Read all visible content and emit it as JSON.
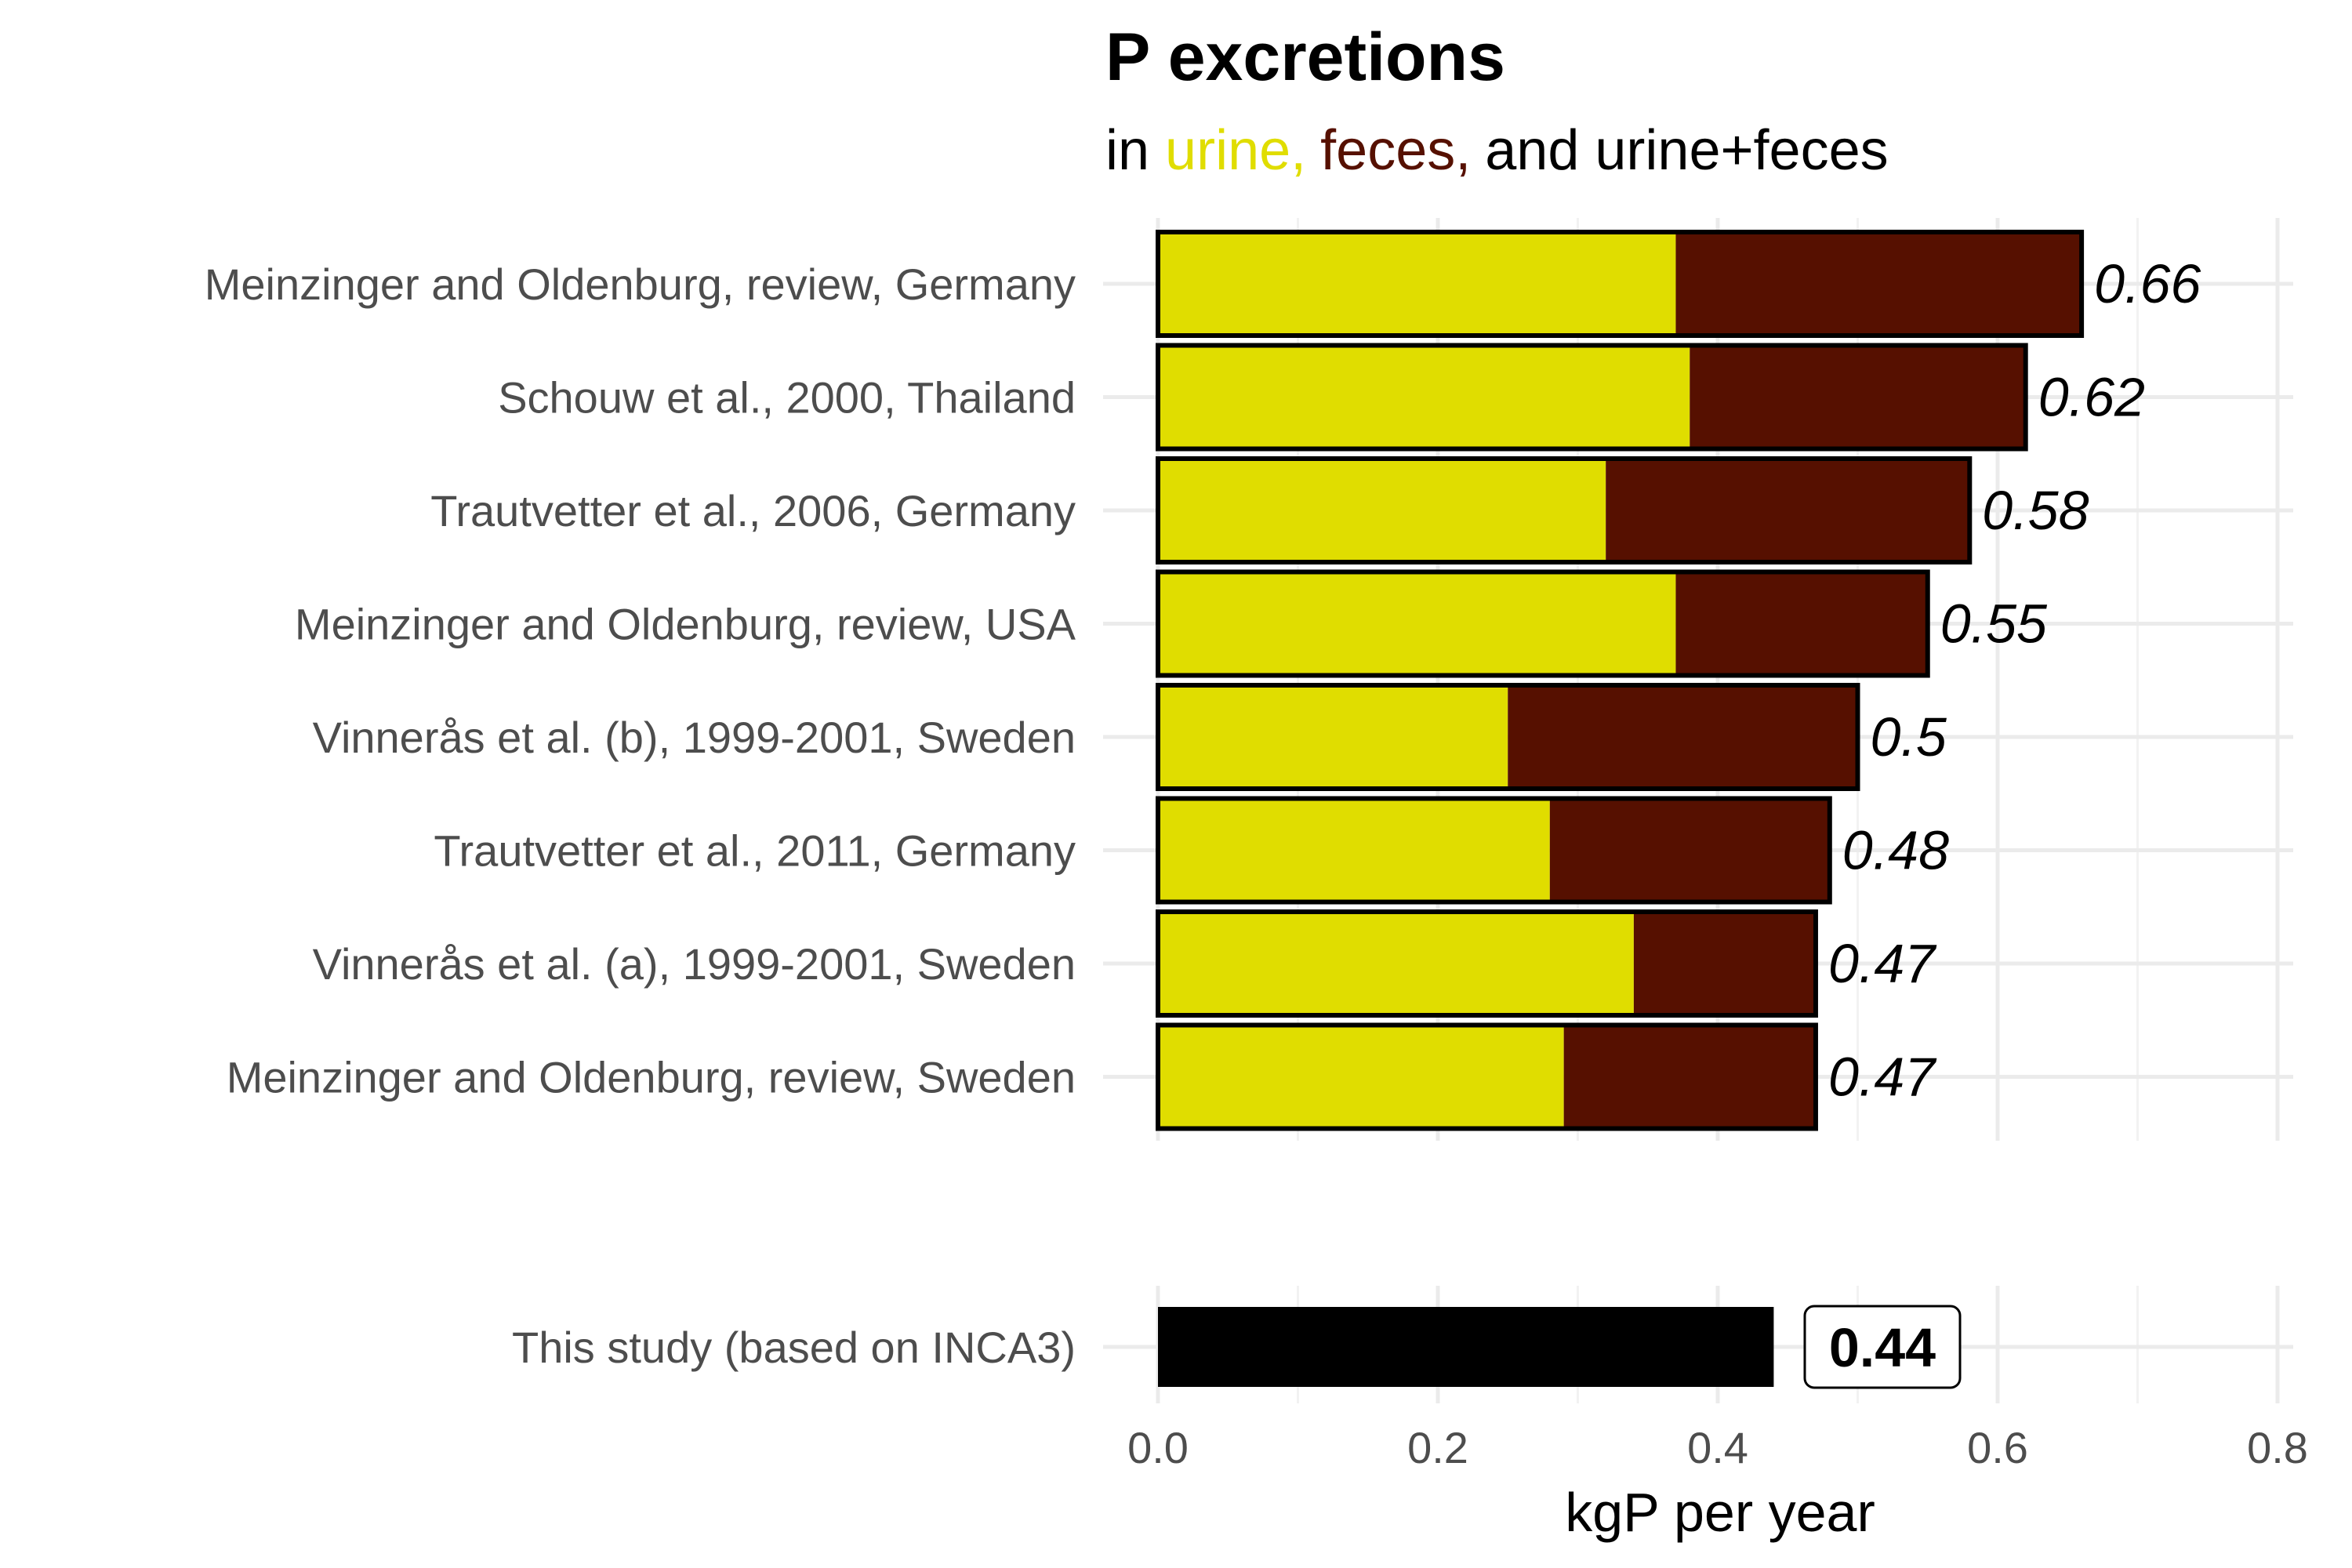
{
  "chart_data": {
    "type": "bar",
    "orientation": "horizontal",
    "stacked": true,
    "title": "P excretions",
    "subtitle": {
      "prefix": "in ",
      "urine": "urine,",
      "feces": "feces,",
      "suffix": "and urine+feces"
    },
    "xlabel": "kgP per year",
    "ylabel": "",
    "xlim": [
      0,
      0.8
    ],
    "xticks": [
      "0.0",
      "0.2",
      "0.4",
      "0.6",
      "0.8"
    ],
    "xtick_values": [
      0,
      0.2,
      0.4,
      0.6,
      0.8
    ],
    "grid": true,
    "legend": "none",
    "categories": [
      "Meinzinger and Oldenburg, review, Germany",
      "Schouw et al., 2000, Thailand",
      "Trautvetter et al., 2006, Germany",
      "Meinzinger and Oldenburg, review, USA",
      "Vinnerås et al. (b), 1999-2001, Sweden",
      "Trautvetter et al., 2011, Germany",
      "Vinnerås et al. (a), 1999-2001, Sweden",
      "Meinzinger and Oldenburg, review, Sweden"
    ],
    "series": [
      {
        "key": "urine",
        "color": "#e0dd00",
        "values": [
          0.37,
          0.38,
          0.32,
          0.37,
          0.25,
          0.28,
          0.34,
          0.29
        ]
      },
      {
        "key": "feces",
        "color": "#561000",
        "values": [
          0.29,
          0.24,
          0.26,
          0.18,
          0.25,
          0.2,
          0.13,
          0.18
        ]
      }
    ],
    "totals": [
      0.66,
      0.62,
      0.58,
      0.55,
      0.5,
      0.48,
      0.47,
      0.47
    ],
    "total_labels": [
      "0.66",
      "0.62",
      "0.58",
      "0.55",
      "0.5",
      "0.48",
      "0.47",
      "0.47"
    ],
    "study": {
      "label": "This study (based on INCA3)",
      "value": 0.44,
      "value_label": "0.44",
      "color": "#000000"
    }
  }
}
